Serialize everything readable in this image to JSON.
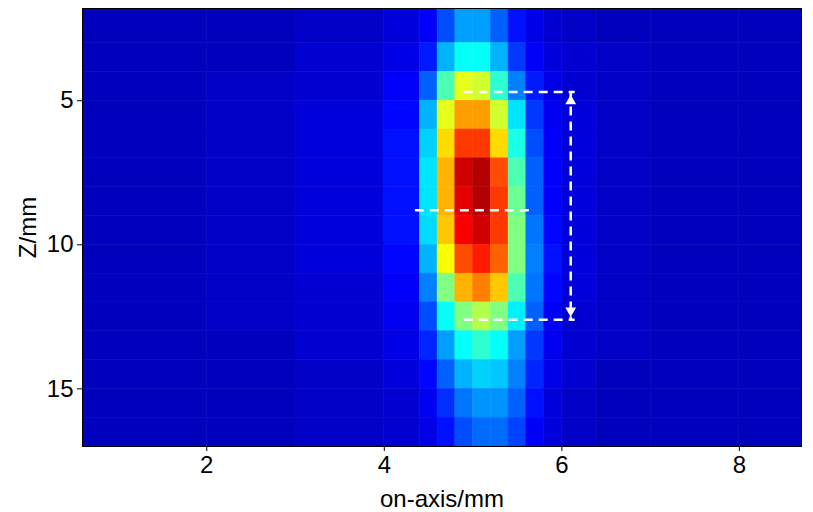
{
  "chart_data": {
    "type": "heatmap",
    "x_label": "on-axis/mm",
    "y_label": "Z/mm",
    "xlim": [
      0.6,
      8.7
    ],
    "ylim": [
      1.8,
      17
    ],
    "xticks": [
      2,
      4,
      6,
      8
    ],
    "yticks": [
      5,
      10,
      15
    ],
    "cells": {
      "x_edges": [
        0.6,
        2,
        3,
        4,
        4.4,
        4.6,
        4.8,
        5.0,
        5.2,
        5.4,
        5.6,
        5.8,
        6.0,
        6.4,
        7,
        8,
        8.7
      ],
      "z_edges": [
        1.8,
        3,
        4,
        5,
        6,
        7,
        8,
        9,
        10,
        11,
        12,
        13,
        14,
        15,
        16,
        17
      ],
      "color_range": [
        0,
        1
      ],
      "values": [
        [
          0.06,
          0.06,
          0.07,
          0.09,
          0.12,
          0.2,
          0.28,
          0.28,
          0.22,
          0.14,
          0.1,
          0.08,
          0.07,
          0.06,
          0.06,
          0.06
        ],
        [
          0.06,
          0.06,
          0.08,
          0.1,
          0.15,
          0.3,
          0.38,
          0.38,
          0.3,
          0.18,
          0.12,
          0.09,
          0.08,
          0.07,
          0.06,
          0.06
        ],
        [
          0.06,
          0.07,
          0.08,
          0.12,
          0.22,
          0.45,
          0.6,
          0.58,
          0.42,
          0.25,
          0.15,
          0.1,
          0.08,
          0.07,
          0.06,
          0.06
        ],
        [
          0.06,
          0.07,
          0.09,
          0.13,
          0.3,
          0.6,
          0.72,
          0.72,
          0.58,
          0.35,
          0.18,
          0.11,
          0.09,
          0.07,
          0.06,
          0.06
        ],
        [
          0.06,
          0.07,
          0.09,
          0.14,
          0.33,
          0.66,
          0.82,
          0.82,
          0.66,
          0.4,
          0.2,
          0.12,
          0.09,
          0.07,
          0.06,
          0.06
        ],
        [
          0.06,
          0.07,
          0.09,
          0.14,
          0.35,
          0.7,
          0.92,
          0.95,
          0.8,
          0.45,
          0.22,
          0.12,
          0.09,
          0.07,
          0.06,
          0.06
        ],
        [
          0.06,
          0.07,
          0.09,
          0.14,
          0.35,
          0.7,
          0.9,
          0.95,
          0.82,
          0.48,
          0.22,
          0.12,
          0.09,
          0.07,
          0.06,
          0.06
        ],
        [
          0.06,
          0.07,
          0.09,
          0.14,
          0.34,
          0.68,
          0.88,
          0.92,
          0.82,
          0.5,
          0.24,
          0.13,
          0.09,
          0.07,
          0.06,
          0.06
        ],
        [
          0.06,
          0.07,
          0.09,
          0.13,
          0.3,
          0.62,
          0.8,
          0.85,
          0.78,
          0.5,
          0.25,
          0.14,
          0.09,
          0.07,
          0.06,
          0.06
        ],
        [
          0.06,
          0.07,
          0.08,
          0.12,
          0.25,
          0.5,
          0.7,
          0.75,
          0.68,
          0.45,
          0.24,
          0.13,
          0.09,
          0.07,
          0.06,
          0.06
        ],
        [
          0.06,
          0.07,
          0.08,
          0.11,
          0.2,
          0.38,
          0.5,
          0.55,
          0.5,
          0.36,
          0.22,
          0.12,
          0.08,
          0.07,
          0.06,
          0.06
        ],
        [
          0.06,
          0.06,
          0.08,
          0.1,
          0.16,
          0.28,
          0.38,
          0.42,
          0.38,
          0.28,
          0.18,
          0.11,
          0.08,
          0.07,
          0.06,
          0.06
        ],
        [
          0.06,
          0.06,
          0.07,
          0.09,
          0.13,
          0.22,
          0.3,
          0.33,
          0.32,
          0.25,
          0.16,
          0.1,
          0.08,
          0.06,
          0.06,
          0.06
        ],
        [
          0.06,
          0.06,
          0.07,
          0.08,
          0.11,
          0.17,
          0.24,
          0.27,
          0.27,
          0.22,
          0.14,
          0.09,
          0.07,
          0.06,
          0.06,
          0.06
        ],
        [
          0.06,
          0.06,
          0.07,
          0.08,
          0.1,
          0.14,
          0.2,
          0.23,
          0.23,
          0.19,
          0.12,
          0.09,
          0.07,
          0.06,
          0.06,
          0.06
        ]
      ]
    },
    "annotations": [
      {
        "type": "hline",
        "z": 4.7,
        "x": [
          4.9,
          6.15
        ]
      },
      {
        "type": "hline",
        "z": 12.6,
        "x": [
          4.9,
          6.15
        ]
      },
      {
        "type": "hline",
        "z": 8.8,
        "x": [
          4.35,
          5.7
        ]
      },
      {
        "type": "double_arrow",
        "x": 6.1,
        "z": [
          4.7,
          12.6
        ]
      }
    ]
  }
}
